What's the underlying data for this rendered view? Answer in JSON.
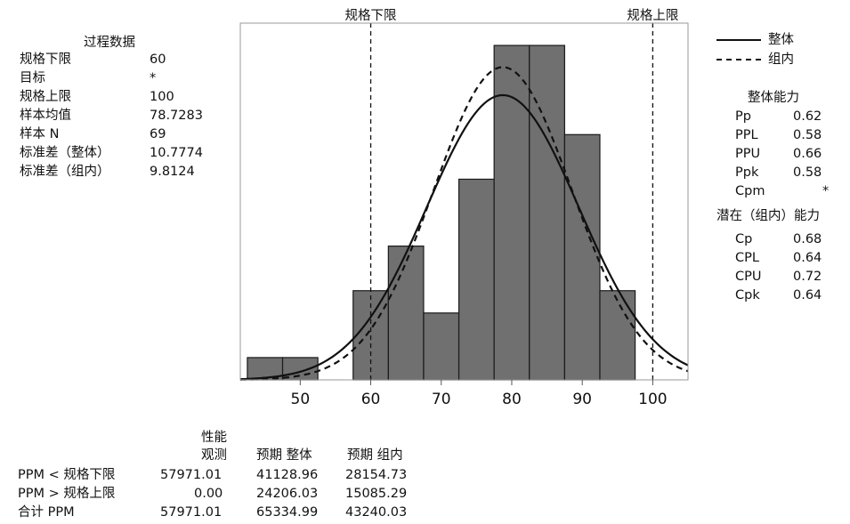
{
  "process_data": {
    "title": "过程数据",
    "rows": [
      {
        "label": "规格下限",
        "value": "60"
      },
      {
        "label": "目标",
        "value": "*"
      },
      {
        "label": "规格上限",
        "value": "100"
      },
      {
        "label": "样本均值",
        "value": "78.7283"
      },
      {
        "label": "样本 N",
        "value": "69"
      },
      {
        "label": "标准差（整体）",
        "value": "10.7774"
      },
      {
        "label": "标准差（组内）",
        "value": "9.8124"
      }
    ]
  },
  "legend": {
    "overall": "整体",
    "within": "组内"
  },
  "overall_capability": {
    "title": "整体能力",
    "rows": [
      {
        "label": "Pp",
        "value": "0.62"
      },
      {
        "label": "PPL",
        "value": "0.58"
      },
      {
        "label": "PPU",
        "value": "0.66"
      },
      {
        "label": "Ppk",
        "value": "0.58"
      },
      {
        "label": "Cpm",
        "value": "*"
      }
    ]
  },
  "potential_capability": {
    "title": "潜在（组内）能力",
    "rows": [
      {
        "label": "Cp",
        "value": "0.68"
      },
      {
        "label": "CPL",
        "value": "0.64"
      },
      {
        "label": "CPU",
        "value": "0.72"
      },
      {
        "label": "Cpk",
        "value": "0.64"
      }
    ]
  },
  "performance": {
    "header_top": "性能",
    "col_observed": "观测",
    "col_expected_overall": "预期 整体",
    "col_expected_within": "预期 组内",
    "rows": [
      {
        "label": "PPM < 规格下限",
        "observed": "57971.01",
        "expected_overall": "41128.96",
        "expected_within": "28154.73"
      },
      {
        "label": "PPM > 规格上限",
        "observed": "0.00",
        "expected_overall": "24206.03",
        "expected_within": "15085.29"
      },
      {
        "label": "合计 PPM",
        "observed": "57971.01",
        "expected_overall": "65334.99",
        "expected_within": "43240.03"
      }
    ]
  },
  "chart_data": {
    "type": "bar",
    "bins": [
      {
        "start": 42.5,
        "end": 47.5,
        "count": 1
      },
      {
        "start": 47.5,
        "end": 52.5,
        "count": 1
      },
      {
        "start": 52.5,
        "end": 57.5,
        "count": 0
      },
      {
        "start": 57.5,
        "end": 62.5,
        "count": 4
      },
      {
        "start": 62.5,
        "end": 67.5,
        "count": 6
      },
      {
        "start": 67.5,
        "end": 72.5,
        "count": 3
      },
      {
        "start": 72.5,
        "end": 77.5,
        "count": 9
      },
      {
        "start": 77.5,
        "end": 82.5,
        "count": 15
      },
      {
        "start": 82.5,
        "end": 87.5,
        "count": 15
      },
      {
        "start": 87.5,
        "end": 92.5,
        "count": 11
      },
      {
        "start": 92.5,
        "end": 97.5,
        "count": 4
      }
    ],
    "xlim": [
      41.5,
      105
    ],
    "ylim": [
      0,
      16
    ],
    "xticks": [
      50,
      60,
      70,
      80,
      90,
      100
    ],
    "lsl": 60,
    "usl": 100,
    "lsl_label": "规格下限",
    "usl_label": "规格上限",
    "mean": 78.7283,
    "n": 69,
    "bin_width": 5,
    "sd_overall": 10.7774,
    "sd_within": 9.8124,
    "bar_color": "#707070",
    "curves": [
      {
        "name": "整体",
        "style": "solid",
        "sd": 10.7774
      },
      {
        "name": "组内",
        "style": "dashed",
        "sd": 9.8124
      }
    ]
  }
}
